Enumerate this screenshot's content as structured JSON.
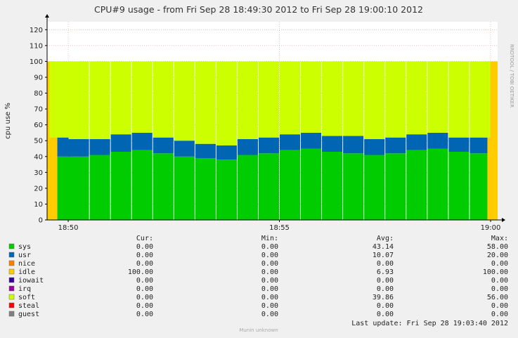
{
  "chart_data": {
    "type": "area",
    "title": "CPU#9 usage - from Fri Sep 28 18:49:30 2012 to Fri Sep 28 19:00:10 2012",
    "ylabel": "cpu use %",
    "ylim": [
      0,
      125
    ],
    "yticks": [
      0,
      10,
      20,
      30,
      40,
      50,
      60,
      70,
      80,
      90,
      100,
      110,
      120
    ],
    "xlim": [
      "18:49:30",
      "19:00:10"
    ],
    "xticks": [
      {
        "time": "18:50:00",
        "label": "18:50"
      },
      {
        "time": "18:55:00",
        "label": "18:55"
      },
      {
        "time": "19:00:00",
        "label": "19:00"
      }
    ],
    "grid": true,
    "stacked": true,
    "series": [
      {
        "name": "sys",
        "color": "#00cc00",
        "values": [
          0,
          40,
          40,
          41,
          43,
          44,
          42,
          40,
          39,
          38,
          41,
          42,
          44,
          45,
          43,
          42,
          41,
          42,
          44,
          45,
          43,
          42,
          0
        ]
      },
      {
        "name": "usr",
        "color": "#0066b3",
        "values": [
          0,
          12,
          11,
          10,
          11,
          11,
          10,
          10,
          9,
          9,
          10,
          10,
          10,
          10,
          10,
          11,
          10,
          10,
          10,
          10,
          9,
          10,
          0
        ]
      },
      {
        "name": "nice",
        "color": "#ff8000",
        "values": [
          0,
          0,
          0,
          0,
          0,
          0,
          0,
          0,
          0,
          0,
          0,
          0,
          0,
          0,
          0,
          0,
          0,
          0,
          0,
          0,
          0,
          0,
          0
        ]
      },
      {
        "name": "idle",
        "color": "#ffcc00",
        "values": [
          100,
          0,
          0,
          0,
          0,
          0,
          0,
          0,
          0,
          0,
          0,
          0,
          0,
          0,
          0,
          0,
          0,
          0,
          0,
          0,
          0,
          0,
          100
        ]
      },
      {
        "name": "iowait",
        "color": "#330099",
        "values": [
          0,
          0,
          0,
          0,
          0,
          0,
          0,
          0,
          0,
          0,
          0,
          0,
          0,
          0,
          0,
          0,
          0,
          0,
          0,
          0,
          0,
          0,
          0
        ]
      },
      {
        "name": "irq",
        "color": "#990099",
        "values": [
          0,
          0,
          0,
          0,
          0,
          0,
          0,
          0,
          0,
          0,
          0,
          0,
          0,
          0,
          0,
          0,
          0,
          0,
          0,
          0,
          0,
          0,
          0
        ]
      },
      {
        "name": "soft",
        "color": "#ccff00",
        "values": [
          0,
          48,
          49,
          49,
          46,
          45,
          48,
          50,
          52,
          53,
          49,
          48,
          46,
          45,
          47,
          47,
          49,
          48,
          46,
          45,
          48,
          48,
          0
        ]
      },
      {
        "name": "steal",
        "color": "#ff0000",
        "values": [
          0,
          0,
          0,
          0,
          0,
          0,
          0,
          0,
          0,
          0,
          0,
          0,
          0,
          0,
          0,
          0,
          0,
          0,
          0,
          0,
          0,
          0,
          0
        ]
      },
      {
        "name": "guest",
        "color": "#808080",
        "values": [
          0,
          0,
          0,
          0,
          0,
          0,
          0,
          0,
          0,
          0,
          0,
          0,
          0,
          0,
          0,
          0,
          0,
          0,
          0,
          0,
          0,
          0,
          0
        ]
      }
    ],
    "x_times": [
      "18:49:30",
      "18:49:48",
      "18:50:15",
      "18:50:45",
      "18:51:15",
      "18:51:45",
      "18:52:15",
      "18:52:45",
      "18:53:15",
      "18:53:45",
      "18:54:15",
      "18:54:45",
      "18:55:15",
      "18:55:45",
      "18:56:15",
      "18:56:45",
      "18:57:15",
      "18:57:45",
      "18:58:15",
      "18:58:45",
      "18:59:15",
      "18:59:45",
      "19:00:10"
    ],
    "legend": {
      "headers": [
        "Cur:",
        "Min:",
        "Avg:",
        "Max:"
      ],
      "rows": [
        {
          "name": "sys",
          "color": "#00cc00",
          "cur": "0.00",
          "min": "0.00",
          "avg": "43.14",
          "max": "58.00"
        },
        {
          "name": "usr",
          "color": "#0066b3",
          "cur": "0.00",
          "min": "0.00",
          "avg": "10.07",
          "max": "20.00"
        },
        {
          "name": "nice",
          "color": "#ff8000",
          "cur": "0.00",
          "min": "0.00",
          "avg": "0.00",
          "max": "0.00"
        },
        {
          "name": "idle",
          "color": "#ffcc00",
          "cur": "100.00",
          "min": "0.00",
          "avg": "6.93",
          "max": "100.00"
        },
        {
          "name": "iowait",
          "color": "#330099",
          "cur": "0.00",
          "min": "0.00",
          "avg": "0.00",
          "max": "0.00"
        },
        {
          "name": "irq",
          "color": "#990099",
          "cur": "0.00",
          "min": "0.00",
          "avg": "0.00",
          "max": "0.00"
        },
        {
          "name": "soft",
          "color": "#ccff00",
          "cur": "0.00",
          "min": "0.00",
          "avg": "39.86",
          "max": "56.00"
        },
        {
          "name": "steal",
          "color": "#ff0000",
          "cur": "0.00",
          "min": "0.00",
          "avg": "0.00",
          "max": "0.00"
        },
        {
          "name": "guest",
          "color": "#808080",
          "cur": "0.00",
          "min": "0.00",
          "avg": "0.00",
          "max": "0.00"
        }
      ]
    },
    "last_update": "Last update:  Fri Sep 28 19:03:40 2012",
    "footer": "Munin unknown",
    "side_label": "RRDTOOL / TOBI OETIKER"
  }
}
